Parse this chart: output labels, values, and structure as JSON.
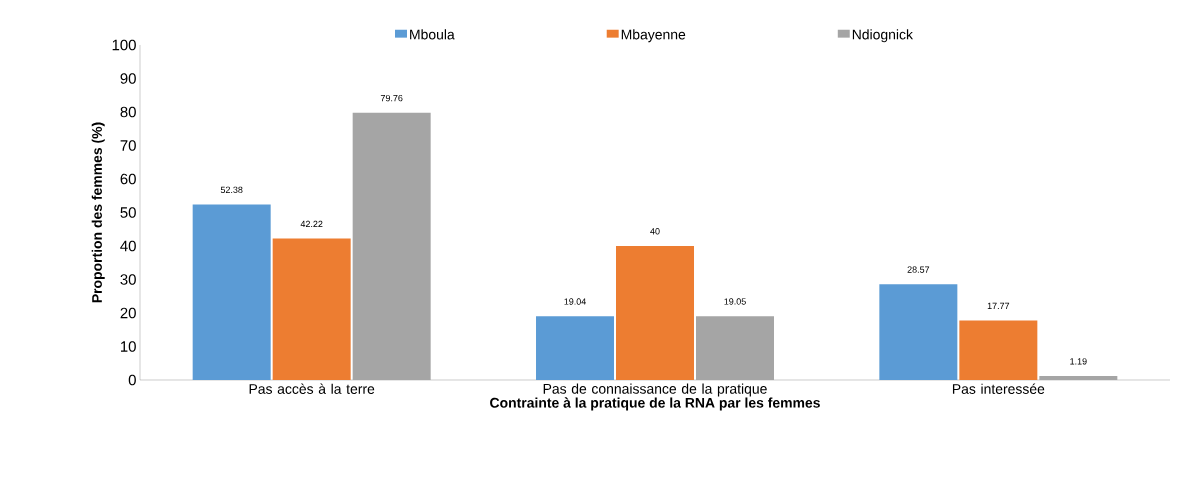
{
  "chart_data": {
    "type": "bar",
    "xlabel": "Contrainte à la pratique de la RNA par les femmes",
    "ylabel": "Proportion des femmes (%)",
    "categories": [
      "Pas accès à la terre",
      "Pas de connaissance de la pratique",
      "Pas interessée"
    ],
    "series": [
      {
        "name": "Mboula",
        "color": "#5b9bd5",
        "values": [
          52.38,
          19.04,
          28.57
        ]
      },
      {
        "name": "Mbayenne",
        "color": "#ed7d31",
        "values": [
          42.22,
          40,
          17.77
        ]
      },
      {
        "name": "Ndiognick",
        "color": "#a5a5a5",
        "values": [
          79.76,
          19.05,
          1.19
        ]
      }
    ],
    "ylim": [
      0,
      100
    ],
    "yticks": [
      0,
      10,
      20,
      30,
      40,
      50,
      60,
      70,
      80,
      90,
      100
    ],
    "data_labels": true,
    "legend": "top",
    "grid": false
  }
}
